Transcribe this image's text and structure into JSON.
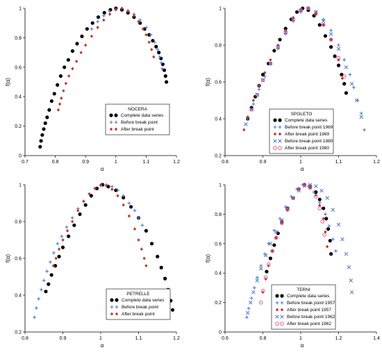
{
  "chart_data": [
    {
      "type": "scatter",
      "legend_title": "NOCERA",
      "xlabel": "α",
      "ylabel": "f(α)",
      "xlim": [
        0.7,
        1.2
      ],
      "ylim": [
        0,
        1
      ],
      "xticks": [
        "0.7",
        "0.8",
        "0.9",
        "1",
        "1.1",
        "1.2"
      ],
      "yticks": [
        "0",
        "0.2",
        "0.4",
        "0.6",
        "0.8",
        "1"
      ],
      "grid": false,
      "legend_position": "bottom-right",
      "series": [
        {
          "name": "Complete data series",
          "marker": "dot",
          "color": "#000000",
          "x": [
            0.75,
            0.753,
            0.757,
            0.762,
            0.767,
            0.773,
            0.78,
            0.788,
            0.797,
            0.807,
            0.818,
            0.83,
            0.843,
            0.857,
            0.872,
            0.888,
            0.905,
            0.923,
            0.942,
            0.962,
            0.982,
            1.0,
            1.02,
            1.04,
            1.06,
            1.08,
            1.095,
            1.11,
            1.122,
            1.133,
            1.142,
            1.149,
            1.155,
            1.16,
            1.164,
            1.167
          ],
          "y": [
            0.06,
            0.1,
            0.14,
            0.18,
            0.22,
            0.26,
            0.31,
            0.37,
            0.42,
            0.48,
            0.54,
            0.6,
            0.65,
            0.71,
            0.76,
            0.81,
            0.86,
            0.9,
            0.94,
            0.97,
            0.99,
            1.0,
            0.99,
            0.97,
            0.94,
            0.9,
            0.86,
            0.82,
            0.78,
            0.74,
            0.7,
            0.66,
            0.62,
            0.58,
            0.54,
            0.5
          ]
        },
        {
          "name": "Before break point",
          "marker": "plus",
          "color": "#4a7fd4",
          "x": [
            0.92,
            0.94,
            0.96,
            0.98,
            1.0,
            1.02,
            1.04,
            1.06,
            1.08,
            1.1,
            1.115,
            1.128,
            1.138,
            1.145,
            1.15,
            1.153
          ],
          "y": [
            0.86,
            0.91,
            0.95,
            0.98,
            0.995,
            1.0,
            0.985,
            0.96,
            0.92,
            0.87,
            0.82,
            0.77,
            0.72,
            0.67,
            0.63,
            0.59
          ]
        },
        {
          "name": "After break point",
          "marker": "diamond",
          "color": "#c0392b",
          "x": [
            0.81,
            0.815,
            0.82,
            0.827,
            0.835,
            0.845,
            0.857,
            0.87,
            0.885,
            0.9,
            0.92,
            0.94,
            0.96,
            0.98,
            1.0,
            1.02,
            1.04,
            1.06,
            1.075,
            1.09,
            1.1,
            1.11,
            1.118,
            1.125
          ],
          "y": [
            0.31,
            0.35,
            0.39,
            0.44,
            0.49,
            0.54,
            0.59,
            0.64,
            0.7,
            0.75,
            0.81,
            0.87,
            0.92,
            0.96,
            0.99,
            1.0,
            0.98,
            0.95,
            0.91,
            0.86,
            0.82,
            0.77,
            0.72,
            0.67
          ]
        }
      ]
    },
    {
      "type": "scatter",
      "legend_title": "SPOLETO",
      "xlabel": "α",
      "ylabel": "f(α)",
      "xlim": [
        0.8,
        1.2
      ],
      "ylim": [
        0.2,
        1
      ],
      "xticks": [
        "0.8",
        "0.9",
        "1",
        "1.1",
        "1.2"
      ],
      "yticks": [
        "0.2",
        "0.4",
        "0.6",
        "0.8",
        "1"
      ],
      "grid": false,
      "legend_position": "bottom-right",
      "series": [
        {
          "name": "Complete data series",
          "marker": "dot",
          "color": "#000000",
          "x": [
            0.86,
            0.87,
            0.88,
            0.89,
            0.9,
            0.915,
            0.93,
            0.945,
            0.96,
            0.975,
            0.99,
            1.005,
            1.02,
            1.035,
            1.05,
            1.065,
            1.08,
            1.09,
            1.1,
            1.108,
            1.115,
            1.12
          ],
          "y": [
            0.4,
            0.46,
            0.52,
            0.58,
            0.64,
            0.7,
            0.77,
            0.83,
            0.89,
            0.94,
            0.98,
            1.0,
            0.99,
            0.96,
            0.91,
            0.85,
            0.79,
            0.74,
            0.69,
            0.64,
            0.59,
            0.54
          ]
        },
        {
          "name": "Before break point 1969",
          "marker": "plus",
          "color": "#4a7fd4",
          "x": [
            0.86,
            0.875,
            0.89,
            0.905,
            0.92,
            0.94,
            0.96,
            0.98,
            1.0,
            1.02,
            1.04,
            1.06,
            1.08,
            1.1,
            1.115,
            1.13,
            1.14,
            1.15,
            1.16,
            1.168
          ],
          "y": [
            0.4,
            0.48,
            0.56,
            0.63,
            0.7,
            0.78,
            0.86,
            0.93,
            0.98,
            1.0,
            0.98,
            0.94,
            0.88,
            0.8,
            0.72,
            0.64,
            0.57,
            0.5,
            0.43,
            0.34
          ]
        },
        {
          "name": "After break point 1969",
          "marker": "diamond",
          "color": "#c0392b",
          "x": [
            0.85,
            0.86,
            0.875,
            0.89,
            0.905,
            0.92,
            0.94,
            0.96,
            0.98,
            1.0,
            1.02,
            1.04,
            1.06,
            1.08,
            1.1,
            1.11
          ],
          "y": [
            0.34,
            0.41,
            0.5,
            0.58,
            0.65,
            0.72,
            0.8,
            0.88,
            0.95,
            0.99,
            1.0,
            0.97,
            0.91,
            0.83,
            0.72,
            0.62
          ]
        },
        {
          "name": "Before break point 1980",
          "marker": "cross",
          "color": "#5b7fcc",
          "x": [
            0.855,
            0.87,
            0.885,
            0.9,
            0.92,
            0.94,
            0.96,
            0.98,
            1.0,
            1.02,
            1.04,
            1.06,
            1.08,
            1.1,
            1.12,
            1.135,
            1.148,
            1.16
          ],
          "y": [
            0.37,
            0.45,
            0.53,
            0.61,
            0.7,
            0.79,
            0.87,
            0.94,
            0.99,
            1.0,
            0.98,
            0.93,
            0.86,
            0.78,
            0.68,
            0.59,
            0.5,
            0.41
          ]
        },
        {
          "name": "After break point 1980",
          "marker": "circle",
          "color": "#e04a8a",
          "x": [
            0.87,
            0.885,
            0.9,
            0.92,
            0.94,
            0.96,
            0.98,
            1.0,
            1.02,
            1.04,
            1.06,
            1.08,
            1.1,
            1.115
          ],
          "y": [
            0.45,
            0.53,
            0.61,
            0.7,
            0.79,
            0.87,
            0.94,
            0.99,
            1.0,
            0.97,
            0.91,
            0.83,
            0.73,
            0.63
          ]
        }
      ]
    },
    {
      "type": "scatter",
      "legend_title": "PETRELLE",
      "xlabel": "α",
      "ylabel": "f(α)",
      "xlim": [
        0.8,
        1.2
      ],
      "ylim": [
        0.2,
        1
      ],
      "xticks": [
        "0.8",
        "0.9",
        "1",
        "1.1",
        "1.2"
      ],
      "yticks": [
        "0.2",
        "0.4",
        "0.6",
        "0.8",
        "1"
      ],
      "grid": false,
      "legend_position": "bottom-right",
      "series": [
        {
          "name": "Complete data series",
          "marker": "dot",
          "color": "#000000",
          "x": [
            0.855,
            0.862,
            0.87,
            0.88,
            0.89,
            0.9,
            0.915,
            0.93,
            0.945,
            0.96,
            0.975,
            0.99,
            1.005,
            1.02,
            1.04,
            1.06,
            1.08,
            1.1,
            1.12,
            1.135,
            1.15,
            1.16,
            1.17,
            1.178,
            1.185,
            1.19
          ],
          "y": [
            0.42,
            0.46,
            0.51,
            0.56,
            0.61,
            0.66,
            0.72,
            0.78,
            0.84,
            0.89,
            0.94,
            0.98,
            1.0,
            0.99,
            0.97,
            0.93,
            0.88,
            0.82,
            0.75,
            0.68,
            0.61,
            0.55,
            0.49,
            0.43,
            0.37,
            0.32
          ]
        },
        {
          "name": "Before break point",
          "marker": "plus",
          "color": "#4a7fd4",
          "x": [
            0.825,
            0.83,
            0.836,
            0.843,
            0.85,
            0.858,
            0.867,
            0.876,
            0.886,
            0.897,
            0.91,
            0.925,
            0.94,
            0.955,
            0.97,
            0.985,
            1.0,
            1.015,
            1.03,
            1.045,
            1.06,
            1.075,
            1.09,
            1.1,
            1.11
          ],
          "y": [
            0.28,
            0.33,
            0.38,
            0.43,
            0.48,
            0.53,
            0.58,
            0.63,
            0.68,
            0.72,
            0.77,
            0.82,
            0.87,
            0.91,
            0.95,
            0.98,
            0.995,
            1.0,
            0.99,
            0.97,
            0.94,
            0.9,
            0.86,
            0.82,
            0.78
          ]
        },
        {
          "name": "After break point",
          "marker": "diamond",
          "color": "#c0392b",
          "x": [
            0.875,
            0.882,
            0.89,
            0.9,
            0.912,
            0.925,
            0.94,
            0.955,
            0.97,
            0.985,
            1.0,
            1.015,
            1.03,
            1.045,
            1.06,
            1.075,
            1.09,
            1.1,
            1.108,
            1.115,
            1.12
          ],
          "y": [
            0.56,
            0.6,
            0.65,
            0.7,
            0.75,
            0.8,
            0.86,
            0.91,
            0.95,
            0.98,
            1.0,
            0.995,
            0.975,
            0.94,
            0.89,
            0.83,
            0.76,
            0.7,
            0.65,
            0.6,
            0.56
          ]
        }
      ]
    },
    {
      "type": "scatter",
      "legend_title": "TERNI",
      "xlabel": "α",
      "ylabel": "f(α)",
      "xlim": [
        0.6,
        1.4
      ],
      "ylim": [
        0,
        1
      ],
      "xticks": [
        "0.6",
        "0.8",
        "1",
        "1.2",
        "1.4"
      ],
      "yticks": [
        "0",
        "0.2",
        "0.4",
        "0.6",
        "0.8",
        "1"
      ],
      "grid": false,
      "legend_position": "bottom-right",
      "series": [
        {
          "name": "Complete data series",
          "marker": "dot",
          "color": "#000000",
          "x": [
            0.82,
            0.84,
            0.86,
            0.88,
            0.9,
            0.93,
            0.96,
            0.99,
            1.02,
            1.05,
            1.08,
            1.1,
            1.12,
            1.135,
            1.145,
            1.155,
            1.16
          ],
          "y": [
            0.41,
            0.5,
            0.59,
            0.67,
            0.75,
            0.84,
            0.91,
            0.97,
            1.0,
            0.99,
            0.95,
            0.9,
            0.84,
            0.77,
            0.7,
            0.62,
            0.53
          ]
        },
        {
          "name": "Before break point 1957",
          "marker": "plus",
          "color": "#4a7fd4",
          "x": [
            0.715,
            0.725,
            0.74,
            0.755,
            0.77,
            0.79,
            0.81,
            0.83,
            0.86,
            0.89,
            0.92,
            0.95,
            0.98,
            1.01,
            1.04,
            1.07,
            1.1,
            1.13,
            1.15,
            1.17,
            1.185
          ],
          "y": [
            0.1,
            0.16,
            0.23,
            0.3,
            0.37,
            0.45,
            0.53,
            0.6,
            0.69,
            0.77,
            0.85,
            0.92,
            0.97,
            1.0,
            0.99,
            0.95,
            0.88,
            0.8,
            0.72,
            0.63,
            0.55
          ]
        },
        {
          "name": "After break point 1957",
          "marker": "diamond",
          "color": "#c0392b",
          "x": [
            0.8,
            0.815,
            0.83,
            0.85,
            0.87,
            0.9,
            0.93,
            0.96,
            0.99,
            1.02,
            1.05,
            1.08,
            1.1,
            1.12,
            1.13,
            1.14
          ],
          "y": [
            0.27,
            0.36,
            0.45,
            0.55,
            0.64,
            0.74,
            0.83,
            0.91,
            0.97,
            1.0,
            0.98,
            0.93,
            0.86,
            0.77,
            0.68,
            0.58
          ]
        },
        {
          "name": "Before break point 1962",
          "marker": "cross",
          "color": "#5b7fcc",
          "x": [
            0.72,
            0.735,
            0.75,
            0.77,
            0.79,
            0.815,
            0.84,
            0.87,
            0.9,
            0.93,
            0.96,
            0.99,
            1.02,
            1.05,
            1.08,
            1.11,
            1.14,
            1.17,
            1.2,
            1.22,
            1.24,
            1.255,
            1.265,
            1.27
          ],
          "y": [
            0.13,
            0.2,
            0.27,
            0.35,
            0.43,
            0.52,
            0.6,
            0.68,
            0.76,
            0.84,
            0.91,
            0.96,
            0.99,
            1.0,
            0.99,
            0.96,
            0.91,
            0.83,
            0.73,
            0.63,
            0.53,
            0.44,
            0.35,
            0.27
          ]
        },
        {
          "name": "After break point 1962",
          "marker": "circle",
          "color": "#e04a8a",
          "x": [
            0.79,
            0.8,
            0.815,
            0.83,
            0.85,
            0.87,
            0.9,
            0.93,
            0.96,
            0.99,
            1.02,
            1.05,
            1.08,
            1.1,
            1.115,
            1.125
          ],
          "y": [
            0.2,
            0.28,
            0.37,
            0.46,
            0.55,
            0.64,
            0.74,
            0.83,
            0.91,
            0.97,
            1.0,
            0.98,
            0.92,
            0.84,
            0.75,
            0.66
          ]
        }
      ]
    }
  ]
}
